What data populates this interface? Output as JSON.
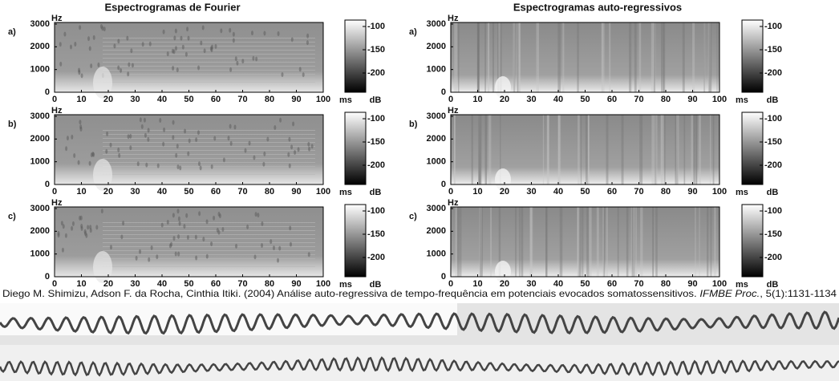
{
  "figure": {
    "columns": [
      {
        "title": "Espectrogramas de Fourier",
        "panels": [
          {
            "label": "a)"
          },
          {
            "label": "b)"
          },
          {
            "label": "c)"
          }
        ]
      },
      {
        "title": "Espectrogramas auto-regressivos",
        "panels": [
          {
            "label": "a)"
          },
          {
            "label": "b)"
          },
          {
            "label": "c)"
          }
        ]
      }
    ],
    "y_axis": {
      "unit": "Hz",
      "ticks": [
        0,
        1000,
        2000,
        3000
      ]
    },
    "x_axis": {
      "unit": "ms",
      "ticks": [
        0,
        10,
        20,
        30,
        40,
        50,
        60,
        70,
        80,
        90,
        100
      ]
    },
    "colorbar": {
      "unit": "dB",
      "ticks": [
        -100,
        -150,
        -200
      ]
    }
  },
  "citation": {
    "text": "Diego M. Shimizu, Adson F. da Rocha, Cinthia Itiki. (2004) Análise auto-regressiva de tempo-frequência em potenciais evocados somatossensitivos.",
    "journal": "IFMBE Proc.",
    "rest": ", 5(1):1131-1134"
  }
}
